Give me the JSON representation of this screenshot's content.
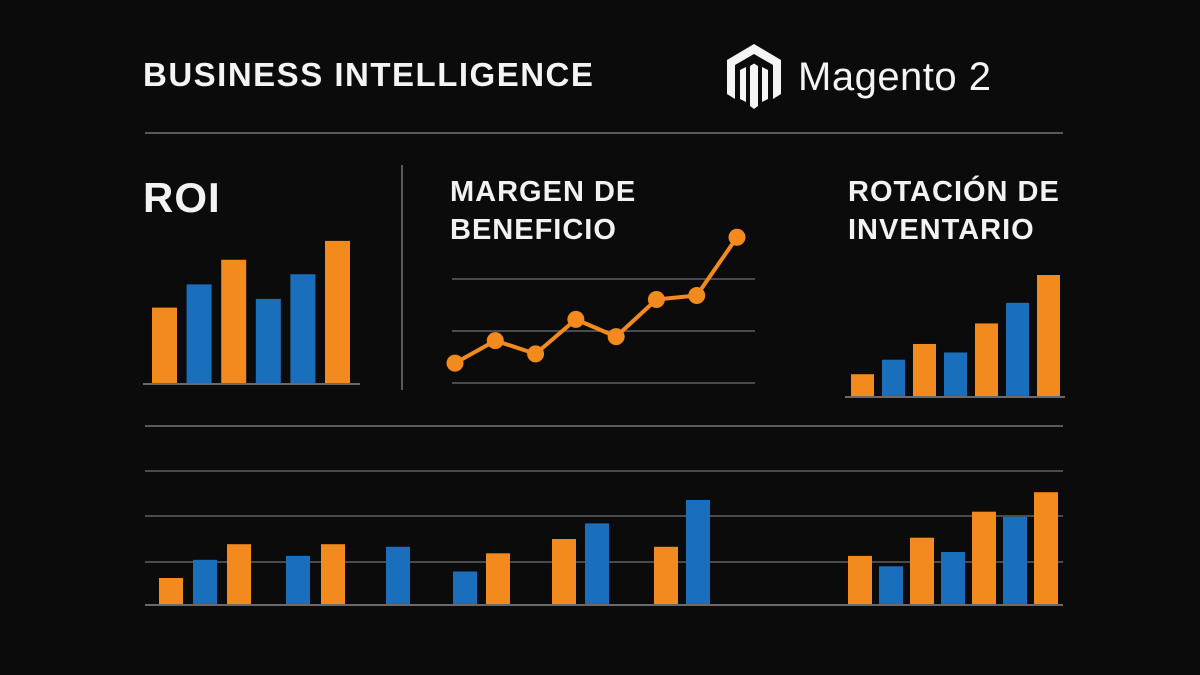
{
  "header": {
    "title": "BUSINESS INTELLIGENCE",
    "brand_name": "Magento 2",
    "brand_icon": "magento-logo-icon"
  },
  "colors": {
    "background": "#0b0b0c",
    "orange": "#f28a1e",
    "blue": "#1a6fbd",
    "gridline": "#4a4a4e",
    "axis": "#6a6a6e",
    "text": "#f2f2f2"
  },
  "chart_data": [
    {
      "id": "roi",
      "type": "bar",
      "title": "ROI",
      "series_colors": [
        "orange",
        "blue",
        "orange",
        "blue",
        "blue",
        "orange"
      ],
      "values": [
        52,
        68,
        85,
        58,
        75,
        98
      ],
      "ylim": [
        0,
        100
      ],
      "grid": false
    },
    {
      "id": "margen",
      "type": "line",
      "title_lines": [
        "MARGEN DE",
        "BENEFICIO"
      ],
      "values": [
        15,
        32,
        22,
        48,
        35,
        63,
        66,
        110
      ],
      "ylim": [
        0,
        120
      ],
      "grid": true,
      "color": "orange"
    },
    {
      "id": "rotacion",
      "type": "bar",
      "title_lines": [
        "ROTACIÓN DE",
        "INVENTARIO"
      ],
      "series_colors": [
        "orange",
        "blue",
        "orange",
        "blue",
        "orange",
        "blue",
        "orange"
      ],
      "values": [
        18,
        30,
        43,
        36,
        60,
        77,
        100
      ],
      "ylim": [
        0,
        100
      ],
      "grid": false
    },
    {
      "id": "bottom",
      "type": "bar",
      "grid": true,
      "ylim": [
        0,
        100
      ],
      "groups": [
        {
          "values": [
            20,
            34,
            46
          ],
          "colors": [
            "orange",
            "blue",
            "orange"
          ]
        },
        {
          "values": [
            37,
            46
          ],
          "colors": [
            "blue",
            "orange"
          ]
        },
        {
          "values": [
            44
          ],
          "colors": [
            "blue"
          ]
        },
        {
          "values": [
            25,
            39
          ],
          "colors": [
            "blue",
            "orange"
          ]
        },
        {
          "values": [
            50,
            62
          ],
          "colors": [
            "orange",
            "blue"
          ]
        },
        {
          "values": [
            44,
            80
          ],
          "colors": [
            "orange",
            "blue"
          ]
        },
        {
          "values": [
            37,
            29,
            51,
            40,
            71,
            67,
            86
          ],
          "colors": [
            "orange",
            "blue",
            "orange",
            "blue",
            "orange",
            "blue",
            "orange"
          ]
        }
      ]
    }
  ]
}
